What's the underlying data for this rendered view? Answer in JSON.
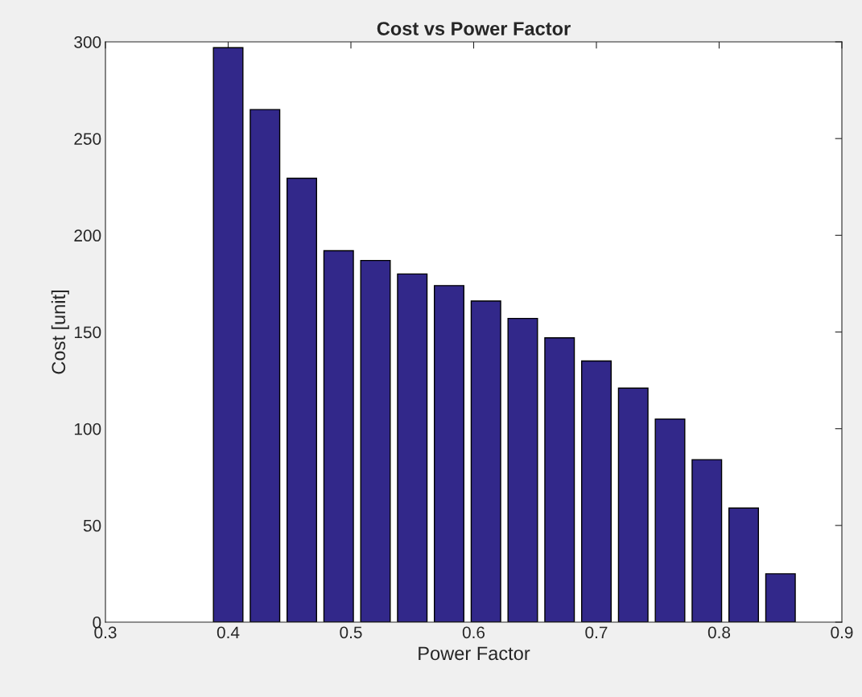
{
  "chart_data": {
    "type": "bar",
    "title": "Cost vs Power Factor",
    "xlabel": "Power Factor",
    "ylabel": "Cost [unit]",
    "x": [
      0.4,
      0.43,
      0.46,
      0.49,
      0.52,
      0.55,
      0.58,
      0.61,
      0.64,
      0.67,
      0.7,
      0.73,
      0.76,
      0.79,
      0.82,
      0.85
    ],
    "values": [
      297,
      265,
      229.5,
      192,
      187,
      180,
      174,
      166,
      157,
      147,
      135,
      121,
      105,
      84,
      59,
      25
    ],
    "color": "#32288a",
    "xlim": [
      0.3,
      0.9
    ],
    "xticks": [
      0.3,
      0.4,
      0.5,
      0.6,
      0.7,
      0.8,
      0.9
    ],
    "ylim": [
      0,
      300
    ],
    "yticks": [
      0,
      50,
      100,
      150,
      200,
      250,
      300
    ],
    "grid": false,
    "legend": false
  }
}
